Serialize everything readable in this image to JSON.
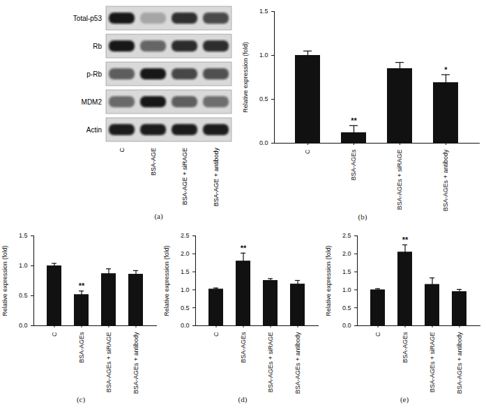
{
  "blot": {
    "caption": "(a)",
    "rows": [
      "Total-p53",
      "Rb",
      "p-Rb",
      "MDM2",
      "Actin"
    ],
    "lanes": [
      "C",
      "BSA-AGE",
      "BSA-AGE + siRAGE",
      "BSA-AGE + antibody"
    ]
  },
  "chart_data": [
    {
      "type": "bar",
      "caption": "(b)",
      "y_label": "Relative expression (fold)",
      "color": "#111111",
      "categories": [
        "C",
        "BSA-AGEs",
        "BSA-AGEs + siRAGE",
        "BSA-AGEs + antibody"
      ],
      "values": [
        1.0,
        0.12,
        0.85,
        0.69
      ],
      "errors": [
        0.05,
        0.08,
        0.07,
        0.09
      ],
      "annotations": [
        null,
        "**",
        null,
        "*"
      ],
      "ylim": [
        0,
        1.5
      ],
      "yticks": [
        {
          "value": 0,
          "label": "0.0"
        },
        {
          "value": 0.5,
          "label": "0.5"
        },
        {
          "value": 1,
          "label": "1.0"
        },
        {
          "value": 1.5,
          "label": "1.5"
        }
      ]
    },
    {
      "type": "bar",
      "caption": "(c)",
      "y_label": "Relative expression (fold)",
      "color": "#111111",
      "categories": [
        "C",
        "BSA-AGEs",
        "BSA-AGEs + siRAGE",
        "BSA-AGEs + antibody"
      ],
      "values": [
        1.0,
        0.52,
        0.87,
        0.86
      ],
      "errors": [
        0.04,
        0.06,
        0.08,
        0.06
      ],
      "annotations": [
        null,
        "**",
        null,
        null
      ],
      "ylim": [
        0,
        1.5
      ],
      "yticks": [
        {
          "value": 0,
          "label": "0.0"
        },
        {
          "value": 0.5,
          "label": "0.5"
        },
        {
          "value": 1,
          "label": "1.0"
        },
        {
          "value": 1.5,
          "label": "1.5"
        }
      ]
    },
    {
      "type": "bar",
      "caption": "(d)",
      "y_label": "Relative expression (fold)",
      "color": "#111111",
      "categories": [
        "C",
        "BSA-AGEs",
        "BSA-AGEs + siRAGE",
        "BSA-AGEs + antibody"
      ],
      "values": [
        1.02,
        1.8,
        1.26,
        1.16
      ],
      "errors": [
        0.03,
        0.22,
        0.05,
        0.1
      ],
      "annotations": [
        null,
        "**",
        null,
        null
      ],
      "ylim": [
        0,
        2.5
      ],
      "yticks": [
        {
          "value": 0,
          "label": "0.0"
        },
        {
          "value": 0.5,
          "label": "0.5"
        },
        {
          "value": 1,
          "label": "1.0"
        },
        {
          "value": 1.5,
          "label": "1.5"
        },
        {
          "value": 2,
          "label": "2.0"
        },
        {
          "value": 2.5,
          "label": "2.5"
        }
      ]
    },
    {
      "type": "bar",
      "caption": "(e)",
      "y_label": "Relative expression (fold)",
      "color": "#111111",
      "categories": [
        "C",
        "BSA-AGEs",
        "BSA-AGEs + siRAGE",
        "BSA-AGEs + antibody"
      ],
      "values": [
        1.0,
        2.05,
        1.15,
        0.95
      ],
      "errors": [
        0.03,
        0.2,
        0.18,
        0.06
      ],
      "annotations": [
        null,
        "**",
        null,
        null
      ],
      "ylim": [
        0,
        2.5
      ],
      "yticks": [
        {
          "value": 0,
          "label": "0.0"
        },
        {
          "value": 0.5,
          "label": "0.5"
        },
        {
          "value": 1,
          "label": "1.0"
        },
        {
          "value": 1.5,
          "label": "1.5"
        },
        {
          "value": 2,
          "label": "2.0"
        },
        {
          "value": 2.5,
          "label": "2.5"
        }
      ]
    }
  ]
}
